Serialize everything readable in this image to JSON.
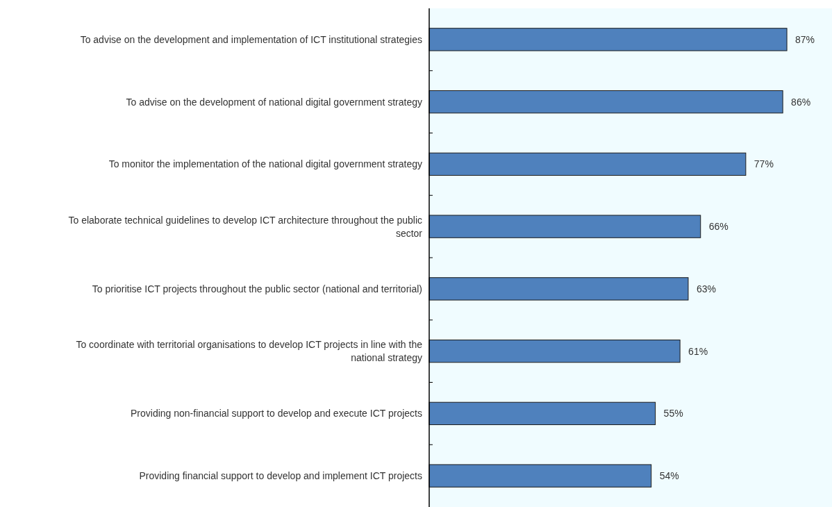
{
  "chart_data": {
    "type": "bar",
    "orientation": "horizontal",
    "categories": [
      "To advise on the development and implementation of ICT institutional strategies",
      "To advise on the development of national digital government strategy",
      "To monitor the implementation of the national digital government strategy",
      "To elaborate technical guidelines to develop ICT architecture throughout the public sector",
      "To prioritise ICT projects throughout the public sector (national and territorial)",
      "To coordinate with territorial organisations to develop ICT projects in line with the national strategy",
      "Providing non-financial support to develop and execute ICT projects",
      "Providing financial support to develop and implement ICT projects"
    ],
    "values": [
      87,
      86,
      77,
      66,
      63,
      61,
      55,
      54
    ],
    "color": "#4f81bd",
    "value_labels": [
      "87%",
      "86%",
      "77%",
      "66%",
      "63%",
      "61%",
      "55%",
      "54%"
    ]
  }
}
